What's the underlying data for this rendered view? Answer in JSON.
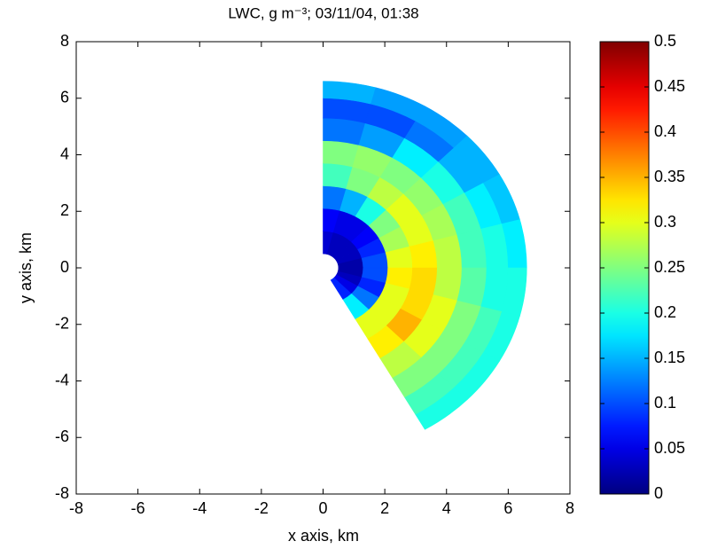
{
  "chart_data": {
    "type": "polar-heatmap",
    "title": "LWC, g m⁻³;  03/11/04, 01:38",
    "xlabel": "x axis, km",
    "ylabel": "y axis, km",
    "xlim": [
      -8,
      8
    ],
    "ylim": [
      -8,
      8
    ],
    "xticks": [
      -8,
      -6,
      -4,
      -2,
      0,
      2,
      4,
      6,
      8
    ],
    "yticks": [
      -8,
      -6,
      -4,
      -2,
      0,
      2,
      4,
      6,
      8
    ],
    "colormap": "jet",
    "clim": [
      0,
      0.5
    ],
    "cticks": [
      0,
      0.05,
      0.1,
      0.15,
      0.2,
      0.25,
      0.3,
      0.35,
      0.4,
      0.45,
      0.5
    ],
    "azimuth_edges": [
      90,
      75,
      60,
      45,
      30,
      15,
      0,
      -15,
      -30,
      -45,
      -60
    ],
    "range_edges": [
      0.5,
      1.3,
      2.1,
      2.9,
      3.7,
      4.5,
      5.3,
      6.0,
      6.6
    ],
    "values": [
      [
        0.04,
        0.06,
        0.12,
        0.22,
        0.25,
        0.12,
        0.1,
        0.15
      ],
      [
        0.03,
        0.05,
        0.15,
        0.25,
        0.26,
        0.14,
        0.1,
        0.14
      ],
      [
        0.03,
        0.05,
        0.2,
        0.28,
        0.25,
        0.18,
        0.12,
        0.14
      ],
      [
        0.03,
        0.06,
        0.25,
        0.3,
        0.26,
        0.2,
        0.15,
        0.15
      ],
      [
        0.03,
        0.08,
        0.27,
        0.3,
        0.27,
        0.22,
        0.18,
        0.16
      ],
      [
        0.02,
        0.1,
        0.3,
        0.32,
        0.28,
        0.22,
        0.2,
        0.18
      ],
      [
        0.02,
        0.1,
        0.32,
        0.33,
        0.28,
        0.23,
        0.2,
        0.2
      ],
      [
        0.03,
        0.08,
        0.3,
        0.33,
        0.3,
        0.25,
        0.22,
        0.2
      ],
      [
        0.05,
        0.12,
        0.3,
        0.35,
        0.3,
        0.25,
        0.22,
        0.2
      ],
      [
        0.08,
        0.18,
        0.3,
        0.32,
        0.28,
        0.25,
        0.22,
        0.2
      ]
    ]
  }
}
